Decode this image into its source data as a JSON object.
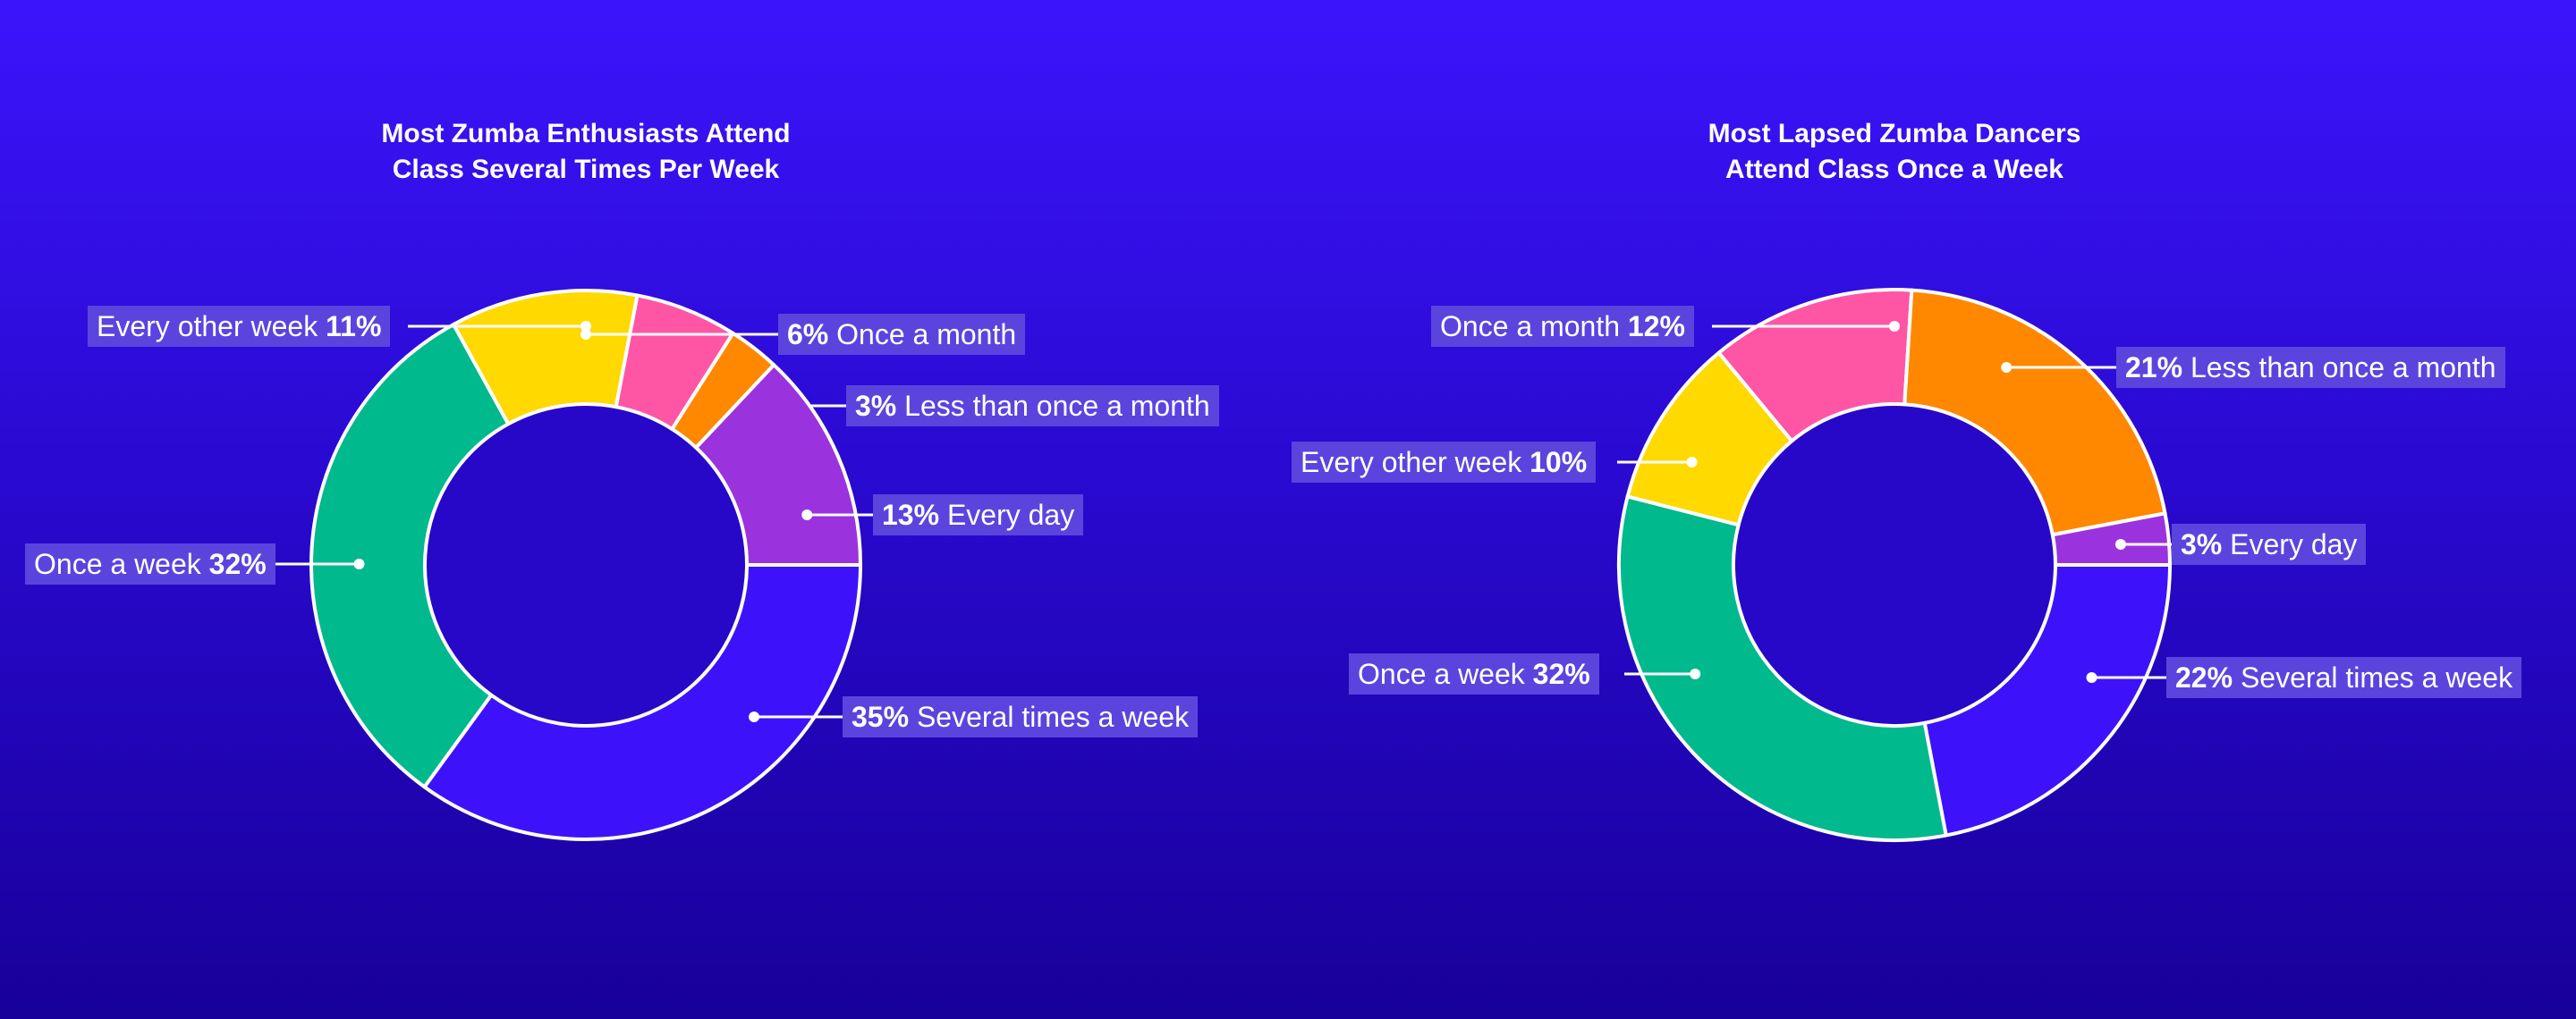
{
  "chart_data": [
    {
      "type": "pie",
      "variant": "donut",
      "title": "Most Zumba Enthusiasts Attend Class Several Times Per Week",
      "title_lines": [
        "Most Zumba Enthusiasts Attend",
        "Class Several Times Per Week"
      ],
      "categories": [
        "Several times a week",
        "Once a week",
        "Every other week",
        "Once a month",
        "Less than once a month",
        "Every day"
      ],
      "values": [
        35,
        32,
        11,
        6,
        3,
        13
      ],
      "unit": "%",
      "colors": [
        "#3d12fb",
        "#00b98c",
        "#ffd900",
        "#ff55a5",
        "#ff8800",
        "#9a33de"
      ],
      "labels": [
        {
          "category": "Several times a week",
          "pct": "35%",
          "text": "Several times a week",
          "pct_first": true
        },
        {
          "category": "Once a week",
          "pct": "32%",
          "text": "Once a week",
          "pct_first": false
        },
        {
          "category": "Every other week",
          "pct": "11%",
          "text": "Every other week",
          "pct_first": false
        },
        {
          "category": "Once a month",
          "pct": "6%",
          "text": "Once a month",
          "pct_first": true
        },
        {
          "category": "Less than once a month",
          "pct": "3%",
          "text": "Less than once a month",
          "pct_first": true
        },
        {
          "category": "Every day",
          "pct": "13%",
          "text": "Every day",
          "pct_first": true
        }
      ]
    },
    {
      "type": "pie",
      "variant": "donut",
      "title": "Most Lapsed Zumba Dancers Attend Class Once a Week",
      "title_lines": [
        "Most Lapsed Zumba Dancers",
        "Attend Class Once a Week"
      ],
      "categories": [
        "Several times a week",
        "Once a week",
        "Every other week",
        "Once a month",
        "Less than once a month",
        "Every day"
      ],
      "values": [
        22,
        32,
        10,
        12,
        21,
        3
      ],
      "unit": "%",
      "colors": [
        "#3d12fb",
        "#00b98c",
        "#ffd900",
        "#ff55a5",
        "#ff8800",
        "#9a33de"
      ],
      "labels": [
        {
          "category": "Several times a week",
          "pct": "22%",
          "text": "Several times a week",
          "pct_first": true
        },
        {
          "category": "Once a week",
          "pct": "32%",
          "text": "Once a week",
          "pct_first": false
        },
        {
          "category": "Every other week",
          "pct": "10%",
          "text": "Every other week",
          "pct_first": false
        },
        {
          "category": "Once a month",
          "pct": "12%",
          "text": "Once a month",
          "pct_first": false
        },
        {
          "category": "Less than once a month",
          "pct": "21%",
          "text": "Less than once a month",
          "pct_first": true
        },
        {
          "category": "Every day",
          "pct": "3%",
          "text": "Every day",
          "pct_first": true
        }
      ]
    }
  ],
  "theme": {
    "background_top": "#3c14fb",
    "background_bottom": "#18009a",
    "donut_hole": "#2708c8",
    "label_bg": "#5b44de",
    "stroke": "#ffffff"
  }
}
